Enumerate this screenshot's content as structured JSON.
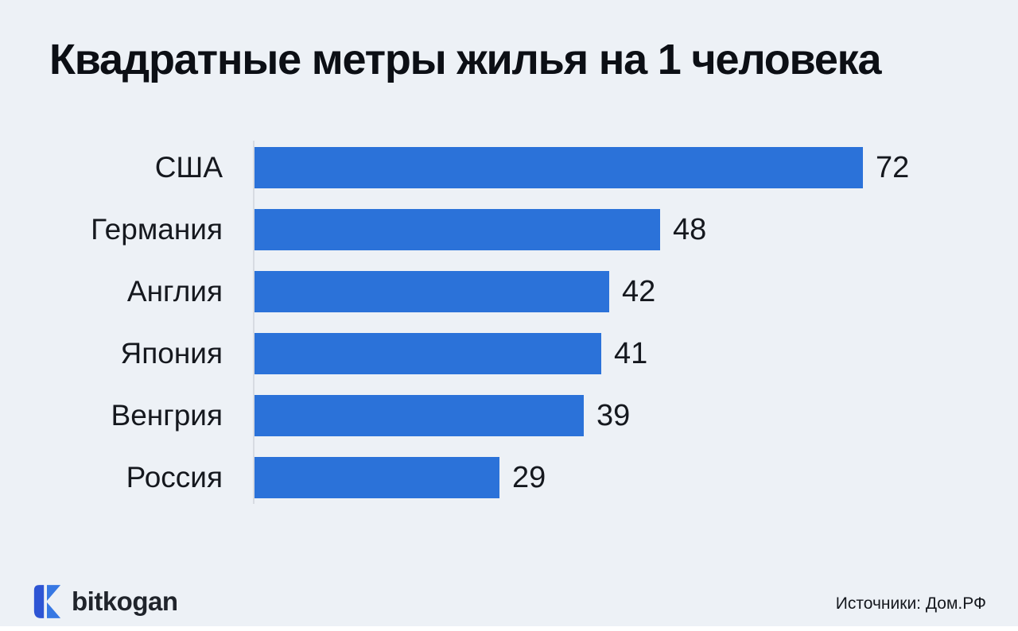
{
  "chart": {
    "title": "Квадратные метры жилья на 1 человека"
  },
  "chart_data": {
    "type": "bar",
    "orientation": "horizontal",
    "title": "Квадратные метры жилья на 1 человека",
    "categories": [
      "США",
      "Германия",
      "Англия",
      "Япония",
      "Венгрия",
      "Россия"
    ],
    "values": [
      72,
      48,
      42,
      41,
      39,
      29
    ],
    "xlabel": "",
    "ylabel": "",
    "xlim": [
      0,
      76
    ],
    "grid": false,
    "legend": false,
    "bar_color": "#2b72d9",
    "value_labels": "outside-end"
  },
  "footer": {
    "logo_text": "bitkogan",
    "source": "Источники: Дом.РФ"
  },
  "colors": {
    "background": "#edf1f6",
    "bar": "#2b72d9",
    "text": "#15181e",
    "axis": "#d7dbe2",
    "logo_dark_blue": "#2e55d4",
    "logo_light_blue": "#3778e3"
  }
}
